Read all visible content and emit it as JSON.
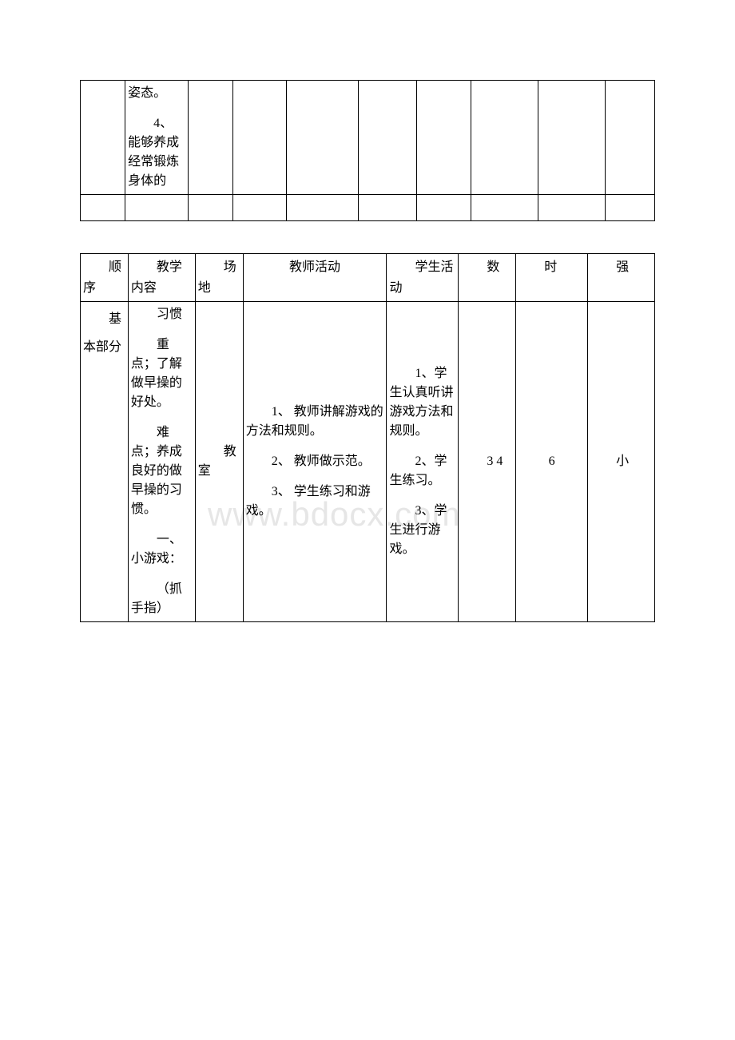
{
  "table1": {
    "row1": {
      "c2_p1": "姿态。",
      "c2_p2": "4、能够养成经常锻炼身体的"
    }
  },
  "table2": {
    "header": {
      "c1": "顺序",
      "c2": "教学内容",
      "c3": "场地",
      "c4": "教师活动",
      "c5": "学生活动",
      "c6": "数",
      "c7": "时",
      "c8": "强"
    },
    "row1": {
      "c1": "基本部分",
      "c2_p1": "习惯",
      "c2_p2": "重点；了解做早操的好处。",
      "c2_p3": "难点；养成良好的做早操的习惯。",
      "c2_p4": "一、小游戏：",
      "c2_p5": "（抓手指）",
      "c3": "教室",
      "c4_p1": "1、 教师讲解游戏的方法和规则。",
      "c4_p2": "2、 教师做示范。",
      "c4_p3": "3、 学生练习和游戏。",
      "c5_p1": "1、学生认真听讲游戏方法和规则。",
      "c5_p2": "2、学生练习。",
      "c5_p3": "3、学生进行游戏。",
      "c6": "3 4",
      "c7": "6",
      "c8": "小"
    }
  },
  "watermark": "www.bdocx.com"
}
